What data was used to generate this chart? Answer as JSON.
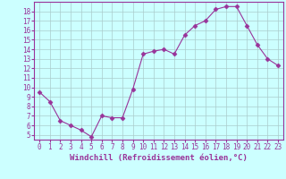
{
  "x": [
    0,
    1,
    2,
    3,
    4,
    5,
    6,
    7,
    8,
    9,
    10,
    11,
    12,
    13,
    14,
    15,
    16,
    17,
    18,
    19,
    20,
    21,
    22,
    23
  ],
  "y": [
    9.5,
    8.5,
    6.5,
    6.0,
    5.5,
    4.8,
    7.0,
    6.8,
    6.8,
    9.8,
    13.5,
    13.8,
    14.0,
    13.5,
    15.5,
    16.5,
    17.0,
    18.2,
    18.5,
    18.5,
    16.5,
    14.5,
    13.0,
    12.3
  ],
  "line_color": "#993399",
  "marker": "D",
  "marker_size": 2.5,
  "bg_color": "#ccffff",
  "grid_color": "#aacccc",
  "xlabel": "Windchill (Refroidissement éolien,°C)",
  "xlim": [
    -0.5,
    23.5
  ],
  "ylim": [
    4.5,
    19.0
  ],
  "yticks": [
    5,
    6,
    7,
    8,
    9,
    10,
    11,
    12,
    13,
    14,
    15,
    16,
    17,
    18
  ],
  "xticks": [
    0,
    1,
    2,
    3,
    4,
    5,
    6,
    7,
    8,
    9,
    10,
    11,
    12,
    13,
    14,
    15,
    16,
    17,
    18,
    19,
    20,
    21,
    22,
    23
  ],
  "spine_color": "#993399",
  "tick_color": "#993399",
  "label_color": "#993399",
  "xlabel_fontsize": 6.5,
  "tick_fontsize": 5.5
}
